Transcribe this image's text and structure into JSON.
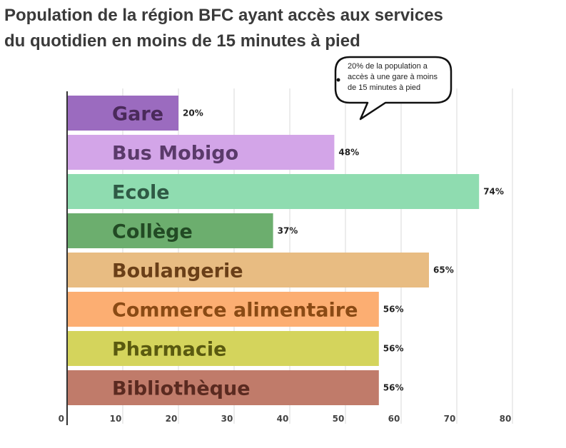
{
  "chart_data": {
    "type": "bar",
    "orientation": "horizontal",
    "title": "Population de la région BFC ayant accès aux services du quotidien en moins de 15 minutes à pied",
    "title_lines": [
      "Population de la région BFC ayant accès aux services",
      "du quotidien en moins de 15 minutes à pied"
    ],
    "categories": [
      "Gare",
      "Bus Mobigo",
      "Ecole",
      "Collège",
      "Boulangerie",
      "Commerce alimentaire",
      "Pharmacie",
      "Bibliothèque"
    ],
    "values": [
      20,
      48,
      74,
      37,
      65,
      56,
      56,
      56
    ],
    "value_labels": [
      "20%",
      "48%",
      "74%",
      "37%",
      "65%",
      "56%",
      "56%",
      "56%"
    ],
    "bar_colors": [
      "#9b6bbf",
      "#d3a5e8",
      "#8fdcb0",
      "#6cae6e",
      "#e8bc82",
      "#fcae72",
      "#d4d45c",
      "#c07b6a"
    ],
    "label_colors": [
      "#4a2a5a",
      "#5a3a6a",
      "#2f5a45",
      "#224a24",
      "#6a3f18",
      "#8a4a14",
      "#5a5a10",
      "#5a2a20"
    ],
    "x_ticks": [
      0,
      10,
      20,
      30,
      40,
      50,
      60,
      70,
      80
    ],
    "x_tick_labels": [
      "0",
      "10",
      "20",
      "30",
      "40",
      "50",
      "60",
      "70",
      "80"
    ],
    "xlim": [
      0,
      80
    ],
    "grid": true,
    "legend": "none",
    "annotations": [
      {
        "lines": [
          "20% de la population a",
          "accès à une gare à moins",
          "de 15 minutes à pied"
        ],
        "style": "speech-bubble"
      }
    ]
  }
}
